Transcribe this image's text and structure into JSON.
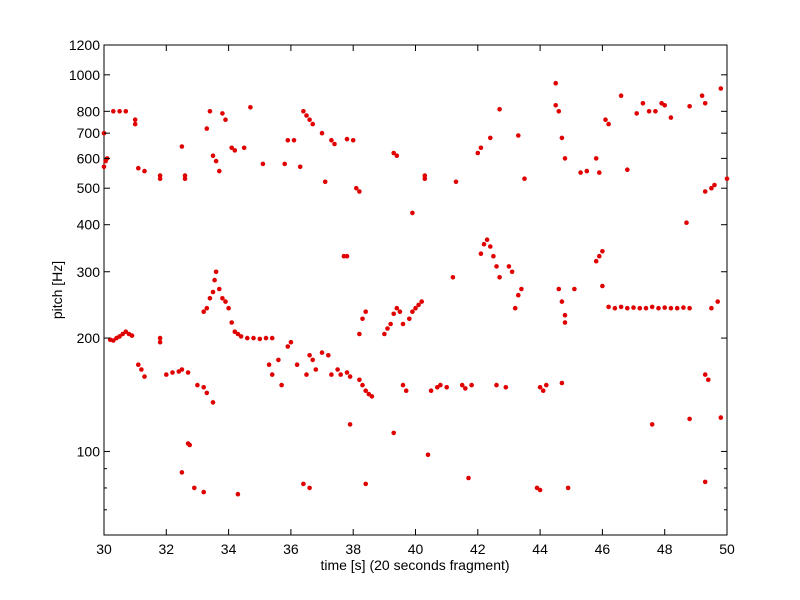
{
  "chart_data": {
    "type": "scatter",
    "title": "",
    "xlabel": "time [s] (20 seconds fragment)",
    "ylabel": "pitch [Hz]",
    "xlim": [
      30,
      50
    ],
    "ylim": [
      60,
      1200
    ],
    "yscale": "log",
    "grid": false,
    "legend": "none",
    "x_ticks": [
      30,
      32,
      34,
      36,
      38,
      40,
      42,
      44,
      46,
      48,
      50
    ],
    "x_tick_labels": [
      "30",
      "32",
      "34",
      "36",
      "38",
      "40",
      "42",
      "44",
      "46",
      "48",
      "50"
    ],
    "y_ticks": [
      100,
      200,
      300,
      400,
      500,
      600,
      700,
      800,
      1000,
      1200
    ],
    "y_tick_labels": [
      "100",
      "200",
      "300",
      "400",
      "500",
      "600",
      "700",
      "800",
      "1000",
      "1200"
    ],
    "y_minor_ticks": [
      70,
      80,
      90
    ],
    "series": [
      {
        "color": "#e00000",
        "points": [
          [
            30.0,
            700
          ],
          [
            30.05,
            590
          ],
          [
            30.1,
            600
          ],
          [
            30.0,
            570
          ],
          [
            30.3,
            800
          ],
          [
            30.5,
            800
          ],
          [
            30.7,
            800
          ],
          [
            31.0,
            760
          ],
          [
            31.0,
            740
          ],
          [
            30.2,
            198
          ],
          [
            30.3,
            197
          ],
          [
            30.4,
            200
          ],
          [
            30.5,
            202
          ],
          [
            30.6,
            205
          ],
          [
            30.7,
            208
          ],
          [
            30.8,
            205
          ],
          [
            30.9,
            203
          ],
          [
            31.1,
            565
          ],
          [
            31.3,
            555
          ],
          [
            31.8,
            540
          ],
          [
            31.8,
            530
          ],
          [
            31.1,
            170
          ],
          [
            31.2,
            165
          ],
          [
            31.3,
            158
          ],
          [
            31.8,
            200
          ],
          [
            31.8,
            195
          ],
          [
            32.0,
            160
          ],
          [
            32.2,
            162
          ],
          [
            32.4,
            163
          ],
          [
            32.5,
            165
          ],
          [
            32.7,
            162
          ],
          [
            32.5,
            645
          ],
          [
            32.6,
            540
          ],
          [
            32.6,
            530
          ],
          [
            32.5,
            88
          ],
          [
            32.7,
            105
          ],
          [
            32.75,
            104
          ],
          [
            32.9,
            80
          ],
          [
            33.0,
            150
          ],
          [
            33.2,
            148
          ],
          [
            33.3,
            143
          ],
          [
            33.5,
            135
          ],
          [
            33.2,
            78
          ],
          [
            33.2,
            235
          ],
          [
            33.3,
            240
          ],
          [
            33.4,
            255
          ],
          [
            33.5,
            265
          ],
          [
            33.55,
            285
          ],
          [
            33.6,
            300
          ],
          [
            33.7,
            270
          ],
          [
            33.8,
            255
          ],
          [
            33.9,
            250
          ],
          [
            34.0,
            240
          ],
          [
            34.1,
            220
          ],
          [
            34.2,
            208
          ],
          [
            34.3,
            205
          ],
          [
            33.3,
            720
          ],
          [
            33.4,
            800
          ],
          [
            33.5,
            610
          ],
          [
            33.6,
            590
          ],
          [
            33.7,
            555
          ],
          [
            33.8,
            790
          ],
          [
            33.9,
            760
          ],
          [
            34.1,
            640
          ],
          [
            34.2,
            630
          ],
          [
            34.5,
            640
          ],
          [
            34.7,
            820
          ],
          [
            34.3,
            77
          ],
          [
            34.4,
            202
          ],
          [
            34.6,
            200
          ],
          [
            34.8,
            200
          ],
          [
            35.0,
            199
          ],
          [
            35.2,
            200
          ],
          [
            35.4,
            200
          ],
          [
            35.1,
            580
          ],
          [
            35.3,
            170
          ],
          [
            35.4,
            160
          ],
          [
            35.6,
            175
          ],
          [
            35.7,
            150
          ],
          [
            35.9,
            190
          ],
          [
            35.8,
            580
          ],
          [
            35.9,
            670
          ],
          [
            36.0,
            195
          ],
          [
            36.2,
            170
          ],
          [
            36.1,
            670
          ],
          [
            36.3,
            570
          ],
          [
            36.4,
            800
          ],
          [
            36.5,
            780
          ],
          [
            36.6,
            760
          ],
          [
            36.7,
            740
          ],
          [
            36.5,
            160
          ],
          [
            36.6,
            180
          ],
          [
            36.7,
            175
          ],
          [
            36.8,
            165
          ],
          [
            37.0,
            183
          ],
          [
            37.2,
            180
          ],
          [
            36.4,
            82
          ],
          [
            36.6,
            80
          ],
          [
            37.0,
            700
          ],
          [
            37.1,
            520
          ],
          [
            37.3,
            670
          ],
          [
            37.4,
            655
          ],
          [
            37.3,
            160
          ],
          [
            37.5,
            165
          ],
          [
            37.6,
            160
          ],
          [
            37.8,
            162
          ],
          [
            37.9,
            158
          ],
          [
            37.7,
            330
          ],
          [
            37.8,
            330
          ],
          [
            37.8,
            675
          ],
          [
            38.0,
            670
          ],
          [
            38.1,
            500
          ],
          [
            38.2,
            490
          ],
          [
            38.2,
            155
          ],
          [
            38.3,
            150
          ],
          [
            38.4,
            145
          ],
          [
            38.5,
            142
          ],
          [
            38.6,
            140
          ],
          [
            38.2,
            205
          ],
          [
            38.3,
            225
          ],
          [
            38.4,
            235
          ],
          [
            38.4,
            82
          ],
          [
            37.9,
            118
          ],
          [
            39.0,
            205
          ],
          [
            39.1,
            212
          ],
          [
            39.2,
            218
          ],
          [
            39.3,
            232
          ],
          [
            39.4,
            240
          ],
          [
            39.5,
            235
          ],
          [
            39.3,
            620
          ],
          [
            39.4,
            610
          ],
          [
            39.6,
            150
          ],
          [
            39.7,
            145
          ],
          [
            39.9,
            430
          ],
          [
            39.6,
            218
          ],
          [
            39.8,
            225
          ],
          [
            39.9,
            235
          ],
          [
            40.0,
            240
          ],
          [
            40.1,
            245
          ],
          [
            40.2,
            250
          ],
          [
            39.3,
            112
          ],
          [
            40.4,
            98
          ],
          [
            40.3,
            540
          ],
          [
            40.3,
            530
          ],
          [
            40.5,
            145
          ],
          [
            40.7,
            148
          ],
          [
            40.8,
            150
          ],
          [
            41.0,
            148
          ],
          [
            41.3,
            520
          ],
          [
            41.2,
            290
          ],
          [
            41.5,
            150
          ],
          [
            41.6,
            147
          ],
          [
            41.7,
            85
          ],
          [
            41.8,
            150
          ],
          [
            42.0,
            620
          ],
          [
            42.1,
            640
          ],
          [
            42.1,
            335
          ],
          [
            42.2,
            355
          ],
          [
            42.3,
            365
          ],
          [
            42.4,
            350
          ],
          [
            42.5,
            330
          ],
          [
            42.6,
            310
          ],
          [
            42.7,
            290
          ],
          [
            42.4,
            680
          ],
          [
            42.7,
            810
          ],
          [
            42.6,
            150
          ],
          [
            42.9,
            148
          ],
          [
            43.0,
            310
          ],
          [
            43.1,
            300
          ],
          [
            43.2,
            240
          ],
          [
            43.3,
            260
          ],
          [
            43.4,
            270
          ],
          [
            43.3,
            690
          ],
          [
            43.5,
            530
          ],
          [
            44.0,
            148
          ],
          [
            44.1,
            145
          ],
          [
            44.2,
            150
          ],
          [
            43.9,
            80
          ],
          [
            44.0,
            79
          ],
          [
            44.5,
            950
          ],
          [
            44.5,
            830
          ],
          [
            44.6,
            800
          ],
          [
            44.6,
            270
          ],
          [
            44.7,
            250
          ],
          [
            44.8,
            230
          ],
          [
            44.8,
            220
          ],
          [
            44.7,
            680
          ],
          [
            44.8,
            600
          ],
          [
            44.9,
            80
          ],
          [
            44.7,
            152
          ],
          [
            45.1,
            270
          ],
          [
            45.3,
            550
          ],
          [
            45.5,
            555
          ],
          [
            45.8,
            320
          ],
          [
            45.9,
            330
          ],
          [
            46.0,
            340
          ],
          [
            45.8,
            600
          ],
          [
            45.9,
            550
          ],
          [
            46.0,
            275
          ],
          [
            46.1,
            760
          ],
          [
            46.2,
            740
          ],
          [
            46.2,
            242
          ],
          [
            46.4,
            240
          ],
          [
            46.6,
            242
          ],
          [
            46.8,
            240
          ],
          [
            47.0,
            241
          ],
          [
            47.2,
            240
          ],
          [
            47.4,
            240
          ],
          [
            47.6,
            242
          ],
          [
            47.8,
            240
          ],
          [
            48.0,
            241
          ],
          [
            48.2,
            240
          ],
          [
            48.4,
            240
          ],
          [
            48.6,
            241
          ],
          [
            48.8,
            240
          ],
          [
            46.6,
            880
          ],
          [
            46.8,
            560
          ],
          [
            47.1,
            790
          ],
          [
            47.3,
            840
          ],
          [
            47.5,
            800
          ],
          [
            47.7,
            800
          ],
          [
            47.9,
            840
          ],
          [
            48.0,
            830
          ],
          [
            48.2,
            770
          ],
          [
            47.6,
            118
          ],
          [
            48.7,
            405
          ],
          [
            48.8,
            825
          ],
          [
            48.8,
            122
          ],
          [
            49.2,
            880
          ],
          [
            49.3,
            840
          ],
          [
            49.3,
            160
          ],
          [
            49.4,
            155
          ],
          [
            49.3,
            83
          ],
          [
            49.3,
            490
          ],
          [
            49.5,
            500
          ],
          [
            49.6,
            510
          ],
          [
            49.7,
            250
          ],
          [
            49.5,
            240
          ],
          [
            49.8,
            920
          ],
          [
            49.8,
            123
          ],
          [
            50.0,
            530
          ]
        ]
      }
    ]
  }
}
